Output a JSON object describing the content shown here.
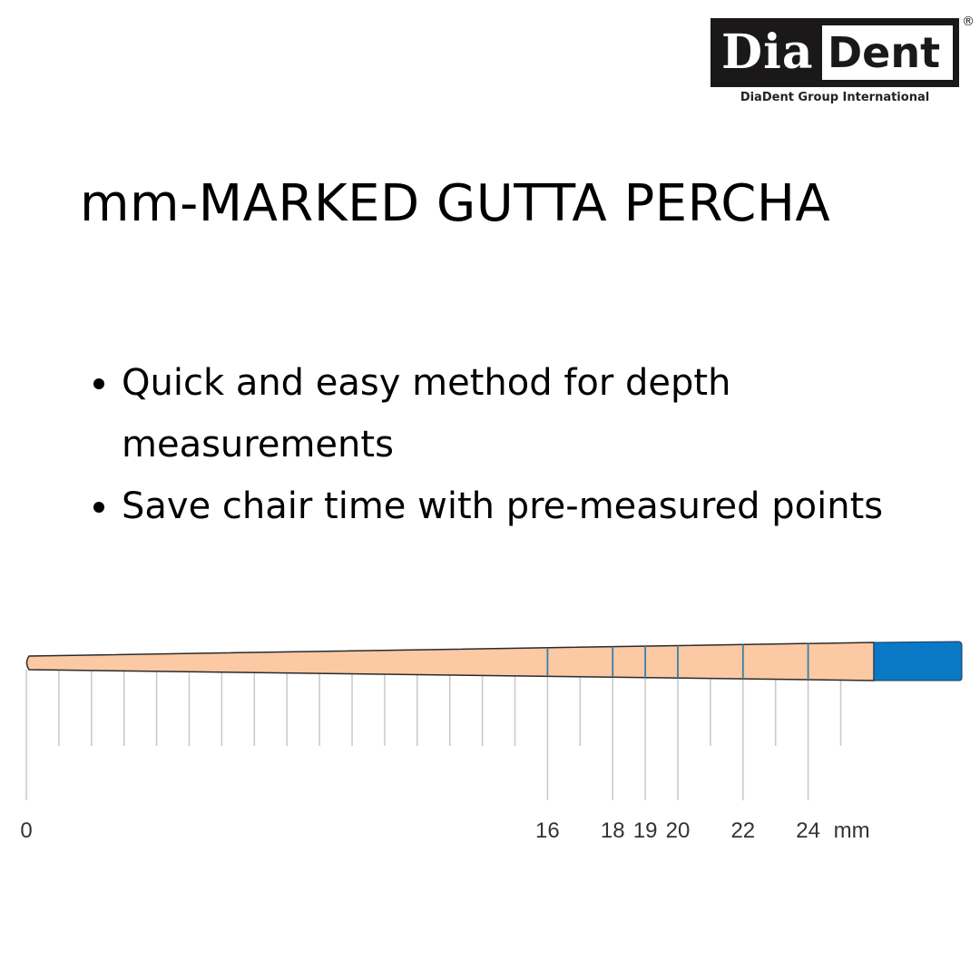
{
  "logo": {
    "part1": "Dia",
    "part2": "Dent",
    "registered": "®",
    "subtitle": "DiaDent Group International"
  },
  "title": "mm-MARKED GUTTA PERCHA",
  "bullets": [
    "Quick and easy method for depth measurements",
    "Save chair time with pre-measured points"
  ],
  "diagram": {
    "unit": "mm",
    "labeled_marks": [
      0,
      16,
      18,
      19,
      20,
      22,
      24
    ],
    "marks_on_point": [
      16,
      18,
      19,
      20,
      22,
      24
    ],
    "tick_range": [
      0,
      25
    ],
    "colors": {
      "point": "#fbc9a3",
      "cap": "#0a78c4",
      "mark_line": "#3a7fa8",
      "tick": "#c8c8c8"
    }
  }
}
